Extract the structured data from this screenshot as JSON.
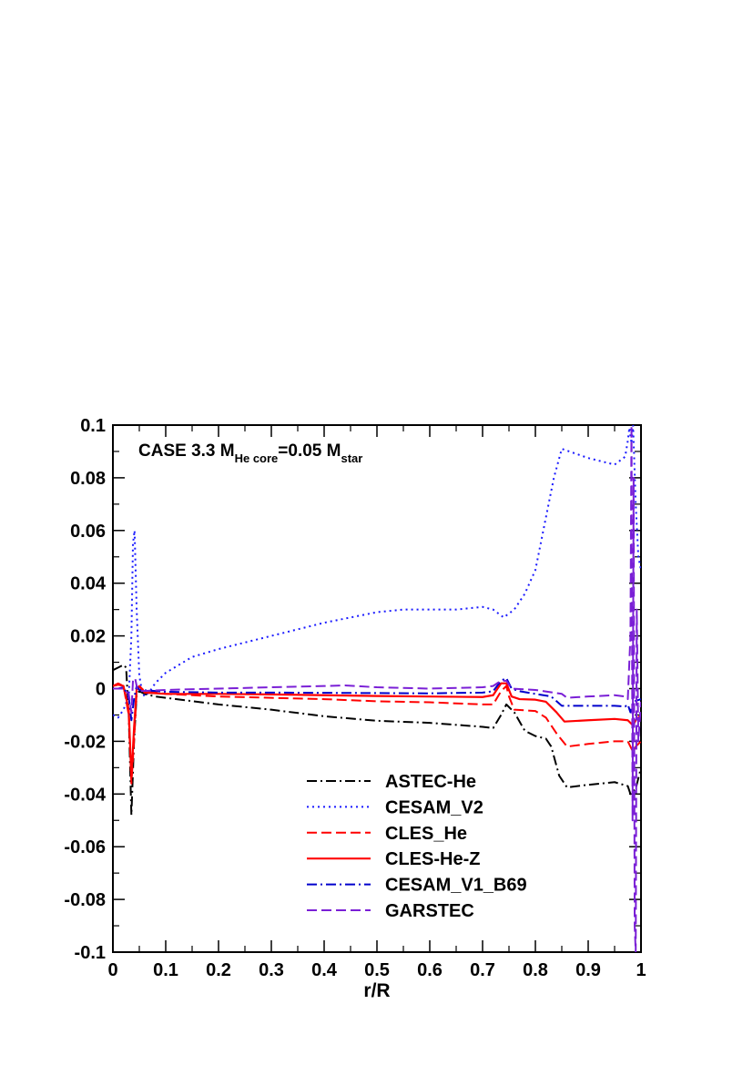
{
  "chart_data": {
    "type": "line",
    "title": "",
    "xlabel": "r/R",
    "ylabel": "",
    "xlim": [
      0,
      1
    ],
    "ylim": [
      -0.1,
      0.1
    ],
    "grid": false,
    "legend_position": "bottom-center",
    "annotation": {
      "prefix": "CASE 3.3 M",
      "sub1": "He core",
      "mid": "=0.05 M",
      "sub2": "star"
    },
    "x_ticks": [
      {
        "value": 0,
        "label": "0"
      },
      {
        "value": 0.1,
        "label": "0.1"
      },
      {
        "value": 0.2,
        "label": "0.2"
      },
      {
        "value": 0.3,
        "label": "0.3"
      },
      {
        "value": 0.4,
        "label": "0.4"
      },
      {
        "value": 0.5,
        "label": "0.5"
      },
      {
        "value": 0.6,
        "label": "0.6"
      },
      {
        "value": 0.7,
        "label": "0.7"
      },
      {
        "value": 0.8,
        "label": "0.8"
      },
      {
        "value": 0.9,
        "label": "0.9"
      },
      {
        "value": 1,
        "label": "1"
      }
    ],
    "y_ticks": [
      {
        "value": 0.1,
        "label": "0.1"
      },
      {
        "value": 0.08,
        "label": "0.08"
      },
      {
        "value": 0.06,
        "label": "0.06"
      },
      {
        "value": 0.04,
        "label": "0.04"
      },
      {
        "value": 0.02,
        "label": "0.02"
      },
      {
        "value": 0,
        "label": "0"
      },
      {
        "value": -0.02,
        "label": "-0.02"
      },
      {
        "value": -0.04,
        "label": "-0.04"
      },
      {
        "value": -0.06,
        "label": "-0.06"
      },
      {
        "value": -0.08,
        "label": "-0.08"
      },
      {
        "value": -0.1,
        "label": "-0.1"
      }
    ],
    "series": [
      {
        "name": "ASTEC-He",
        "color": "#000000",
        "dash": "dashdot",
        "points": [
          [
            0,
            0.007
          ],
          [
            0.01,
            0.008
          ],
          [
            0.02,
            0.009
          ],
          [
            0.025,
            0.008
          ],
          [
            0.03,
            -0.01
          ],
          [
            0.035,
            -0.048
          ],
          [
            0.04,
            -0.02
          ],
          [
            0.045,
            -0.002
          ],
          [
            0.05,
            -0.001
          ],
          [
            0.06,
            -0.002
          ],
          [
            0.08,
            -0.003
          ],
          [
            0.1,
            -0.0035
          ],
          [
            0.2,
            -0.006
          ],
          [
            0.3,
            -0.008
          ],
          [
            0.4,
            -0.0105
          ],
          [
            0.5,
            -0.0122
          ],
          [
            0.6,
            -0.013
          ],
          [
            0.7,
            -0.0145
          ],
          [
            0.72,
            -0.015
          ],
          [
            0.735,
            -0.01
          ],
          [
            0.745,
            -0.006
          ],
          [
            0.76,
            -0.009
          ],
          [
            0.78,
            -0.016
          ],
          [
            0.8,
            -0.018
          ],
          [
            0.82,
            -0.019
          ],
          [
            0.83,
            -0.022
          ],
          [
            0.845,
            -0.033
          ],
          [
            0.86,
            -0.0375
          ],
          [
            0.9,
            -0.0365
          ],
          [
            0.95,
            -0.0355
          ],
          [
            0.975,
            -0.037
          ],
          [
            0.98,
            -0.04
          ],
          [
            0.99,
            -0.038
          ],
          [
            1,
            -0.03
          ]
        ]
      },
      {
        "name": "CESAM_V2",
        "color": "#1a1aff",
        "dash": "dotted",
        "points": [
          [
            0,
            -0.01
          ],
          [
            0.01,
            -0.011
          ],
          [
            0.02,
            -0.008
          ],
          [
            0.03,
            -0.003
          ],
          [
            0.035,
            0.02
          ],
          [
            0.038,
            0.055
          ],
          [
            0.041,
            0.06
          ],
          [
            0.045,
            0.03
          ],
          [
            0.05,
            0.005
          ],
          [
            0.055,
            -0.001
          ],
          [
            0.06,
            -0.003
          ],
          [
            0.07,
            -0.001
          ],
          [
            0.08,
            0.002
          ],
          [
            0.1,
            0.006
          ],
          [
            0.15,
            0.012
          ],
          [
            0.2,
            0.015
          ],
          [
            0.3,
            0.02
          ],
          [
            0.4,
            0.025
          ],
          [
            0.5,
            0.029
          ],
          [
            0.55,
            0.03
          ],
          [
            0.6,
            0.03
          ],
          [
            0.65,
            0.03
          ],
          [
            0.7,
            0.031
          ],
          [
            0.72,
            0.03
          ],
          [
            0.74,
            0.027
          ],
          [
            0.76,
            0.03
          ],
          [
            0.78,
            0.036
          ],
          [
            0.8,
            0.045
          ],
          [
            0.81,
            0.055
          ],
          [
            0.82,
            0.065
          ],
          [
            0.835,
            0.08
          ],
          [
            0.85,
            0.091
          ],
          [
            0.9,
            0.0875
          ],
          [
            0.95,
            0.085
          ],
          [
            0.97,
            0.088
          ],
          [
            0.975,
            0.094
          ],
          [
            0.978,
            0.099
          ],
          [
            0.982,
            0.093
          ],
          [
            0.985,
            0.1
          ],
          [
            0.99,
            0.07
          ],
          [
            0.995,
            0.05
          ],
          [
            1,
            0.045
          ]
        ]
      },
      {
        "name": "CLES_He",
        "color": "#ff0000",
        "dash": "dashed",
        "points": [
          [
            0,
            0.001
          ],
          [
            0.01,
            0.002
          ],
          [
            0.02,
            0.001
          ],
          [
            0.03,
            -0.01
          ],
          [
            0.035,
            -0.036
          ],
          [
            0.04,
            -0.02
          ],
          [
            0.045,
            -0.001
          ],
          [
            0.05,
            0.001
          ],
          [
            0.06,
            -0.001
          ],
          [
            0.1,
            -0.002
          ],
          [
            0.2,
            -0.003
          ],
          [
            0.3,
            -0.0035
          ],
          [
            0.4,
            -0.004
          ],
          [
            0.5,
            -0.0048
          ],
          [
            0.6,
            -0.0052
          ],
          [
            0.7,
            -0.006
          ],
          [
            0.72,
            -0.006
          ],
          [
            0.735,
            -0.001
          ],
          [
            0.745,
            0.001
          ],
          [
            0.75,
            -0.003
          ],
          [
            0.76,
            -0.008
          ],
          [
            0.8,
            -0.0085
          ],
          [
            0.82,
            -0.011
          ],
          [
            0.84,
            -0.017
          ],
          [
            0.86,
            -0.022
          ],
          [
            0.9,
            -0.021
          ],
          [
            0.95,
            -0.02
          ],
          [
            0.975,
            -0.02
          ],
          [
            0.985,
            -0.024
          ],
          [
            0.99,
            -0.022
          ],
          [
            1,
            -0.02
          ]
        ]
      },
      {
        "name": "CLES-He-Z",
        "color": "#ff0000",
        "dash": "solid",
        "points": [
          [
            0,
            0.001
          ],
          [
            0.01,
            0.0015
          ],
          [
            0.02,
            0.001
          ],
          [
            0.03,
            -0.008
          ],
          [
            0.035,
            -0.034
          ],
          [
            0.04,
            -0.015
          ],
          [
            0.045,
            0
          ],
          [
            0.05,
            0.0008
          ],
          [
            0.06,
            -0.0015
          ],
          [
            0.1,
            -0.002
          ],
          [
            0.2,
            -0.002
          ],
          [
            0.3,
            -0.0022
          ],
          [
            0.4,
            -0.0025
          ],
          [
            0.5,
            -0.0028
          ],
          [
            0.6,
            -0.003
          ],
          [
            0.7,
            -0.0032
          ],
          [
            0.72,
            -0.0025
          ],
          [
            0.735,
            0.002
          ],
          [
            0.745,
            0.002
          ],
          [
            0.755,
            -0.003
          ],
          [
            0.77,
            -0.004
          ],
          [
            0.8,
            -0.0042
          ],
          [
            0.82,
            -0.005
          ],
          [
            0.84,
            -0.009
          ],
          [
            0.855,
            -0.0125
          ],
          [
            0.9,
            -0.012
          ],
          [
            0.95,
            -0.0115
          ],
          [
            0.975,
            -0.012
          ],
          [
            0.985,
            -0.014
          ],
          [
            0.99,
            -0.012
          ],
          [
            1,
            -0.01
          ]
        ]
      },
      {
        "name": "CESAM_V1_B69",
        "color": "#0000cc",
        "dash": "dashdot",
        "points": [
          [
            0,
            0
          ],
          [
            0.01,
            0
          ],
          [
            0.02,
            0.0005
          ],
          [
            0.03,
            -0.003
          ],
          [
            0.035,
            -0.012
          ],
          [
            0.04,
            -0.004
          ],
          [
            0.045,
            0.001
          ],
          [
            0.05,
            -0.0005
          ],
          [
            0.1,
            -0.0012
          ],
          [
            0.2,
            -0.0015
          ],
          [
            0.3,
            -0.0015
          ],
          [
            0.4,
            -0.0016
          ],
          [
            0.5,
            -0.0017
          ],
          [
            0.6,
            -0.0018
          ],
          [
            0.7,
            -0.0015
          ],
          [
            0.72,
            -0.001
          ],
          [
            0.735,
            0.003
          ],
          [
            0.745,
            0.004
          ],
          [
            0.755,
            0
          ],
          [
            0.77,
            -0.001
          ],
          [
            0.8,
            -0.002
          ],
          [
            0.83,
            -0.003
          ],
          [
            0.85,
            -0.0065
          ],
          [
            0.9,
            -0.0065
          ],
          [
            0.95,
            -0.0065
          ],
          [
            0.97,
            -0.0068
          ],
          [
            0.975,
            -0.006
          ],
          [
            0.98,
            -0.009
          ],
          [
            0.985,
            -0.005
          ],
          [
            1,
            -0.004
          ]
        ]
      },
      {
        "name": "GARSTEC",
        "color": "#7a1fd6",
        "dash": "dashed",
        "points": [
          [
            0,
            0
          ],
          [
            0.01,
            0
          ],
          [
            0.02,
            0
          ],
          [
            0.03,
            -0.002
          ],
          [
            0.035,
            -0.009
          ],
          [
            0.038,
            0.003
          ],
          [
            0.042,
            0.004
          ],
          [
            0.046,
            0
          ],
          [
            0.05,
            -0.001
          ],
          [
            0.1,
            -0.0005
          ],
          [
            0.2,
            0
          ],
          [
            0.3,
            0.0005
          ],
          [
            0.4,
            0.001
          ],
          [
            0.44,
            0.0012
          ],
          [
            0.5,
            0.0005
          ],
          [
            0.6,
            0
          ],
          [
            0.7,
            0.0005
          ],
          [
            0.72,
            0.001
          ],
          [
            0.735,
            0.003
          ],
          [
            0.745,
            0.003
          ],
          [
            0.755,
            0
          ],
          [
            0.8,
            -0.0005
          ],
          [
            0.85,
            -0.002
          ],
          [
            0.86,
            -0.0035
          ],
          [
            0.9,
            -0.003
          ],
          [
            0.95,
            -0.0025
          ],
          [
            0.97,
            -0.003
          ],
          [
            0.975,
            -0.004
          ],
          [
            0.98,
            0.02
          ],
          [
            0.982,
            0.1
          ],
          [
            0.984,
            -0.05
          ],
          [
            0.986,
            0.08
          ],
          [
            0.988,
            -0.09
          ],
          [
            0.99,
            -0.1
          ],
          [
            0.992,
            0.03
          ],
          [
            0.995,
            -0.02
          ],
          [
            1,
            -0.005
          ]
        ]
      }
    ]
  }
}
